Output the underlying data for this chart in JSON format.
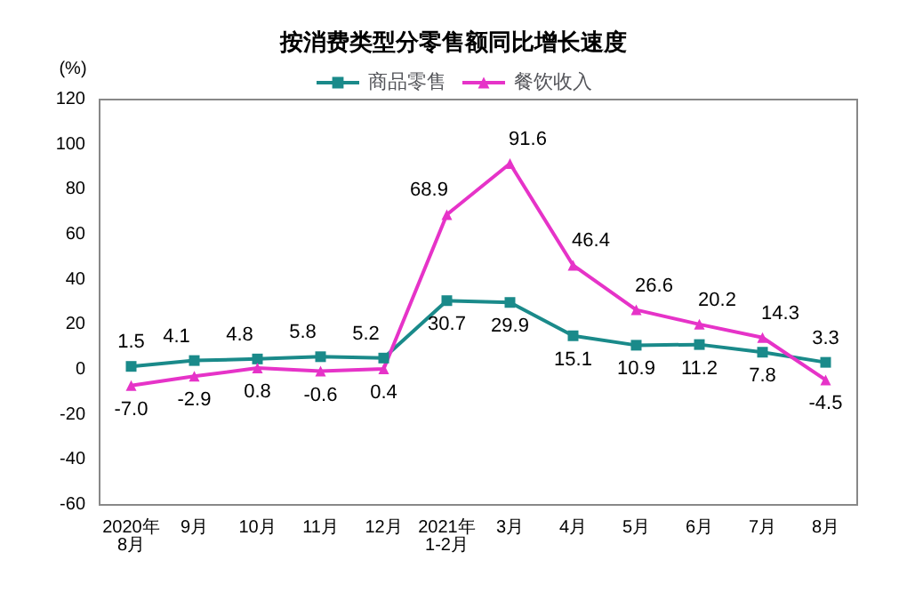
{
  "chart_data": {
    "type": "line",
    "title": "按消费类型分零售额同比增长速度",
    "ylabel": "(%)",
    "categories": [
      "2020年\n8月",
      "9月",
      "10月",
      "11月",
      "12月",
      "2021年\n1-2月",
      "3月",
      "4月",
      "5月",
      "6月",
      "7月",
      "8月"
    ],
    "series": [
      {
        "name": "商品零售",
        "color": "#1a8a8a",
        "marker": "square",
        "values": [
          1.5,
          4.1,
          4.8,
          5.8,
          5.2,
          30.7,
          29.9,
          15.1,
          10.9,
          11.2,
          7.8,
          3.3
        ],
        "value_labels": [
          "1.5",
          "4.1",
          "4.8",
          "5.8",
          "5.2",
          "30.7",
          "29.9",
          "15.1",
          "10.9",
          "11.2",
          "7.8",
          "3.3"
        ]
      },
      {
        "name": "餐饮收入",
        "color": "#e633c8",
        "marker": "triangle",
        "values": [
          -7.0,
          -2.9,
          0.8,
          -0.6,
          0.4,
          68.9,
          91.6,
          46.4,
          26.6,
          20.2,
          14.3,
          -4.5
        ],
        "value_labels": [
          "-7.0",
          "-2.9",
          "0.8",
          "-0.6",
          "0.4",
          "68.9",
          "91.6",
          "46.4",
          "26.6",
          "20.2",
          "14.3",
          "-4.5"
        ]
      }
    ],
    "ylim": [
      -60,
      120
    ],
    "yticks": [
      -60,
      -40,
      -20,
      0,
      20,
      40,
      60,
      80,
      100,
      120
    ],
    "grid": false,
    "legend": "top",
    "line_style": "solid"
  }
}
